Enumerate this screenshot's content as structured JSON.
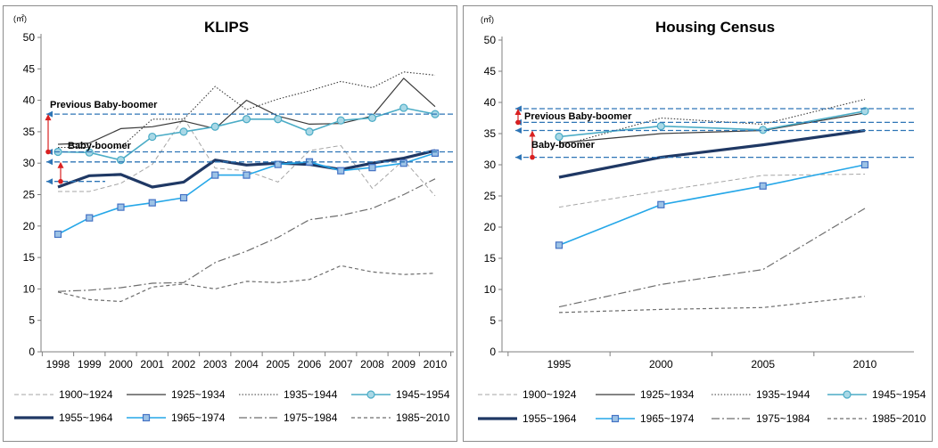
{
  "chart_data": [
    {
      "type": "line",
      "title": "KLIPS",
      "unit": "(㎡)",
      "ylim": [
        0,
        50
      ],
      "yticks": [
        0,
        5,
        10,
        15,
        20,
        25,
        30,
        35,
        40,
        45,
        50
      ],
      "x": [
        "1998",
        "1999",
        "2000",
        "2001",
        "2002",
        "2003",
        "2004",
        "2005",
        "2006",
        "2007",
        "2008",
        "2009",
        "2010"
      ],
      "series": [
        {
          "name": "1900~1924",
          "values": [
            25.5,
            25.5,
            26.8,
            29.8,
            37.2,
            29.2,
            28.8,
            27.0,
            32.0,
            32.8,
            26.0,
            30.5,
            24.8
          ]
        },
        {
          "name": "1925~1934",
          "values": [
            33.0,
            33.2,
            35.5,
            35.8,
            36.7,
            35.5,
            40.0,
            37.5,
            36.2,
            36.3,
            37.5,
            43.5,
            39.0
          ]
        },
        {
          "name": "1935~1944",
          "values": [
            32.5,
            32.5,
            32.5,
            37.0,
            37.0,
            42.2,
            38.5,
            40.2,
            41.5,
            43.0,
            42.0,
            44.5,
            44.0
          ]
        },
        {
          "name": "1945~1954",
          "values": [
            31.8,
            31.7,
            30.5,
            34.2,
            35.0,
            35.8,
            37.0,
            37.0,
            35.0,
            36.8,
            37.2,
            38.8,
            37.8
          ]
        },
        {
          "name": "1955~1964",
          "values": [
            26.2,
            28.0,
            28.2,
            26.2,
            27.0,
            30.5,
            29.7,
            30.0,
            29.8,
            29.0,
            30.0,
            30.8,
            32.0
          ]
        },
        {
          "name": "1965~1974",
          "values": [
            18.7,
            21.3,
            23.0,
            23.7,
            24.5,
            28.1,
            28.1,
            29.8,
            30.2,
            28.8,
            29.3,
            30.0,
            31.6
          ]
        },
        {
          "name": "1975~1984",
          "values": [
            9.6,
            9.8,
            10.2,
            10.9,
            11.0,
            14.2,
            16.0,
            18.2,
            21.0,
            21.7,
            22.8,
            25.0,
            27.5
          ]
        },
        {
          "name": "1985~2010",
          "values": [
            9.5,
            8.3,
            8.0,
            10.3,
            10.8,
            10.0,
            11.2,
            11.0,
            11.5,
            13.7,
            12.7,
            12.3,
            12.5
          ]
        }
      ],
      "annotations": {
        "previous": "Previous Baby-boomer",
        "boomer": "Baby-boomer"
      },
      "reference_lines": [
        37.8,
        31.8,
        30.2,
        27.1
      ],
      "legend": [
        "1900~1924",
        "1925~1934",
        "1935~1944",
        "1945~1954",
        "1955~1964",
        "1965~1974",
        "1975~1984",
        "1985~2010"
      ]
    },
    {
      "type": "line",
      "title": "Housing Census",
      "unit": "(㎡)",
      "ylim": [
        0,
        50
      ],
      "yticks": [
        0,
        5,
        10,
        15,
        20,
        25,
        30,
        35,
        40,
        45,
        50
      ],
      "x": [
        "1995",
        "2000",
        "2005",
        "2010"
      ],
      "series": [
        {
          "name": "1900~1924",
          "values": [
            23.2,
            25.8,
            28.3,
            28.5
          ]
        },
        {
          "name": "1925~1934",
          "values": [
            33.5,
            35.0,
            35.5,
            38.3
          ]
        },
        {
          "name": "1935~1944",
          "values": [
            33.0,
            37.5,
            36.5,
            40.5
          ]
        },
        {
          "name": "1945~1954",
          "values": [
            34.5,
            36.2,
            35.6,
            38.6
          ]
        },
        {
          "name": "1955~1964",
          "values": [
            28.0,
            31.2,
            33.2,
            35.5
          ]
        },
        {
          "name": "1965~1974",
          "values": [
            17.1,
            23.6,
            26.6,
            30.0
          ]
        },
        {
          "name": "1975~1984",
          "values": [
            7.2,
            10.8,
            13.2,
            23.0
          ]
        },
        {
          "name": "1985~2010",
          "values": [
            6.3,
            6.8,
            7.1,
            8.9
          ]
        }
      ],
      "annotations": {
        "previous": "Previous Baby-boomer",
        "boomer": "Baby-boomer"
      },
      "reference_lines": [
        39.0,
        36.8,
        35.5,
        31.2
      ],
      "legend": [
        "1900~1924",
        "1925~1934",
        "1935~1944",
        "1945~1954",
        "1955~1964",
        "1965~1974",
        "1975~1984",
        "1985~2010"
      ]
    }
  ],
  "colors": {
    "gray_dash": "#a6a6a6",
    "dark_solid": "#3a3a3a",
    "dotted": "#3a3a3a",
    "light_blue": "#4bacc6",
    "navy": "#1f3864",
    "sky_blue": "#25a7e8",
    "dash_dot": "#6d6d6d",
    "dark_dash": "#6d6d6d",
    "ref_line": "#2e75b6",
    "arrow": "#d92020"
  }
}
